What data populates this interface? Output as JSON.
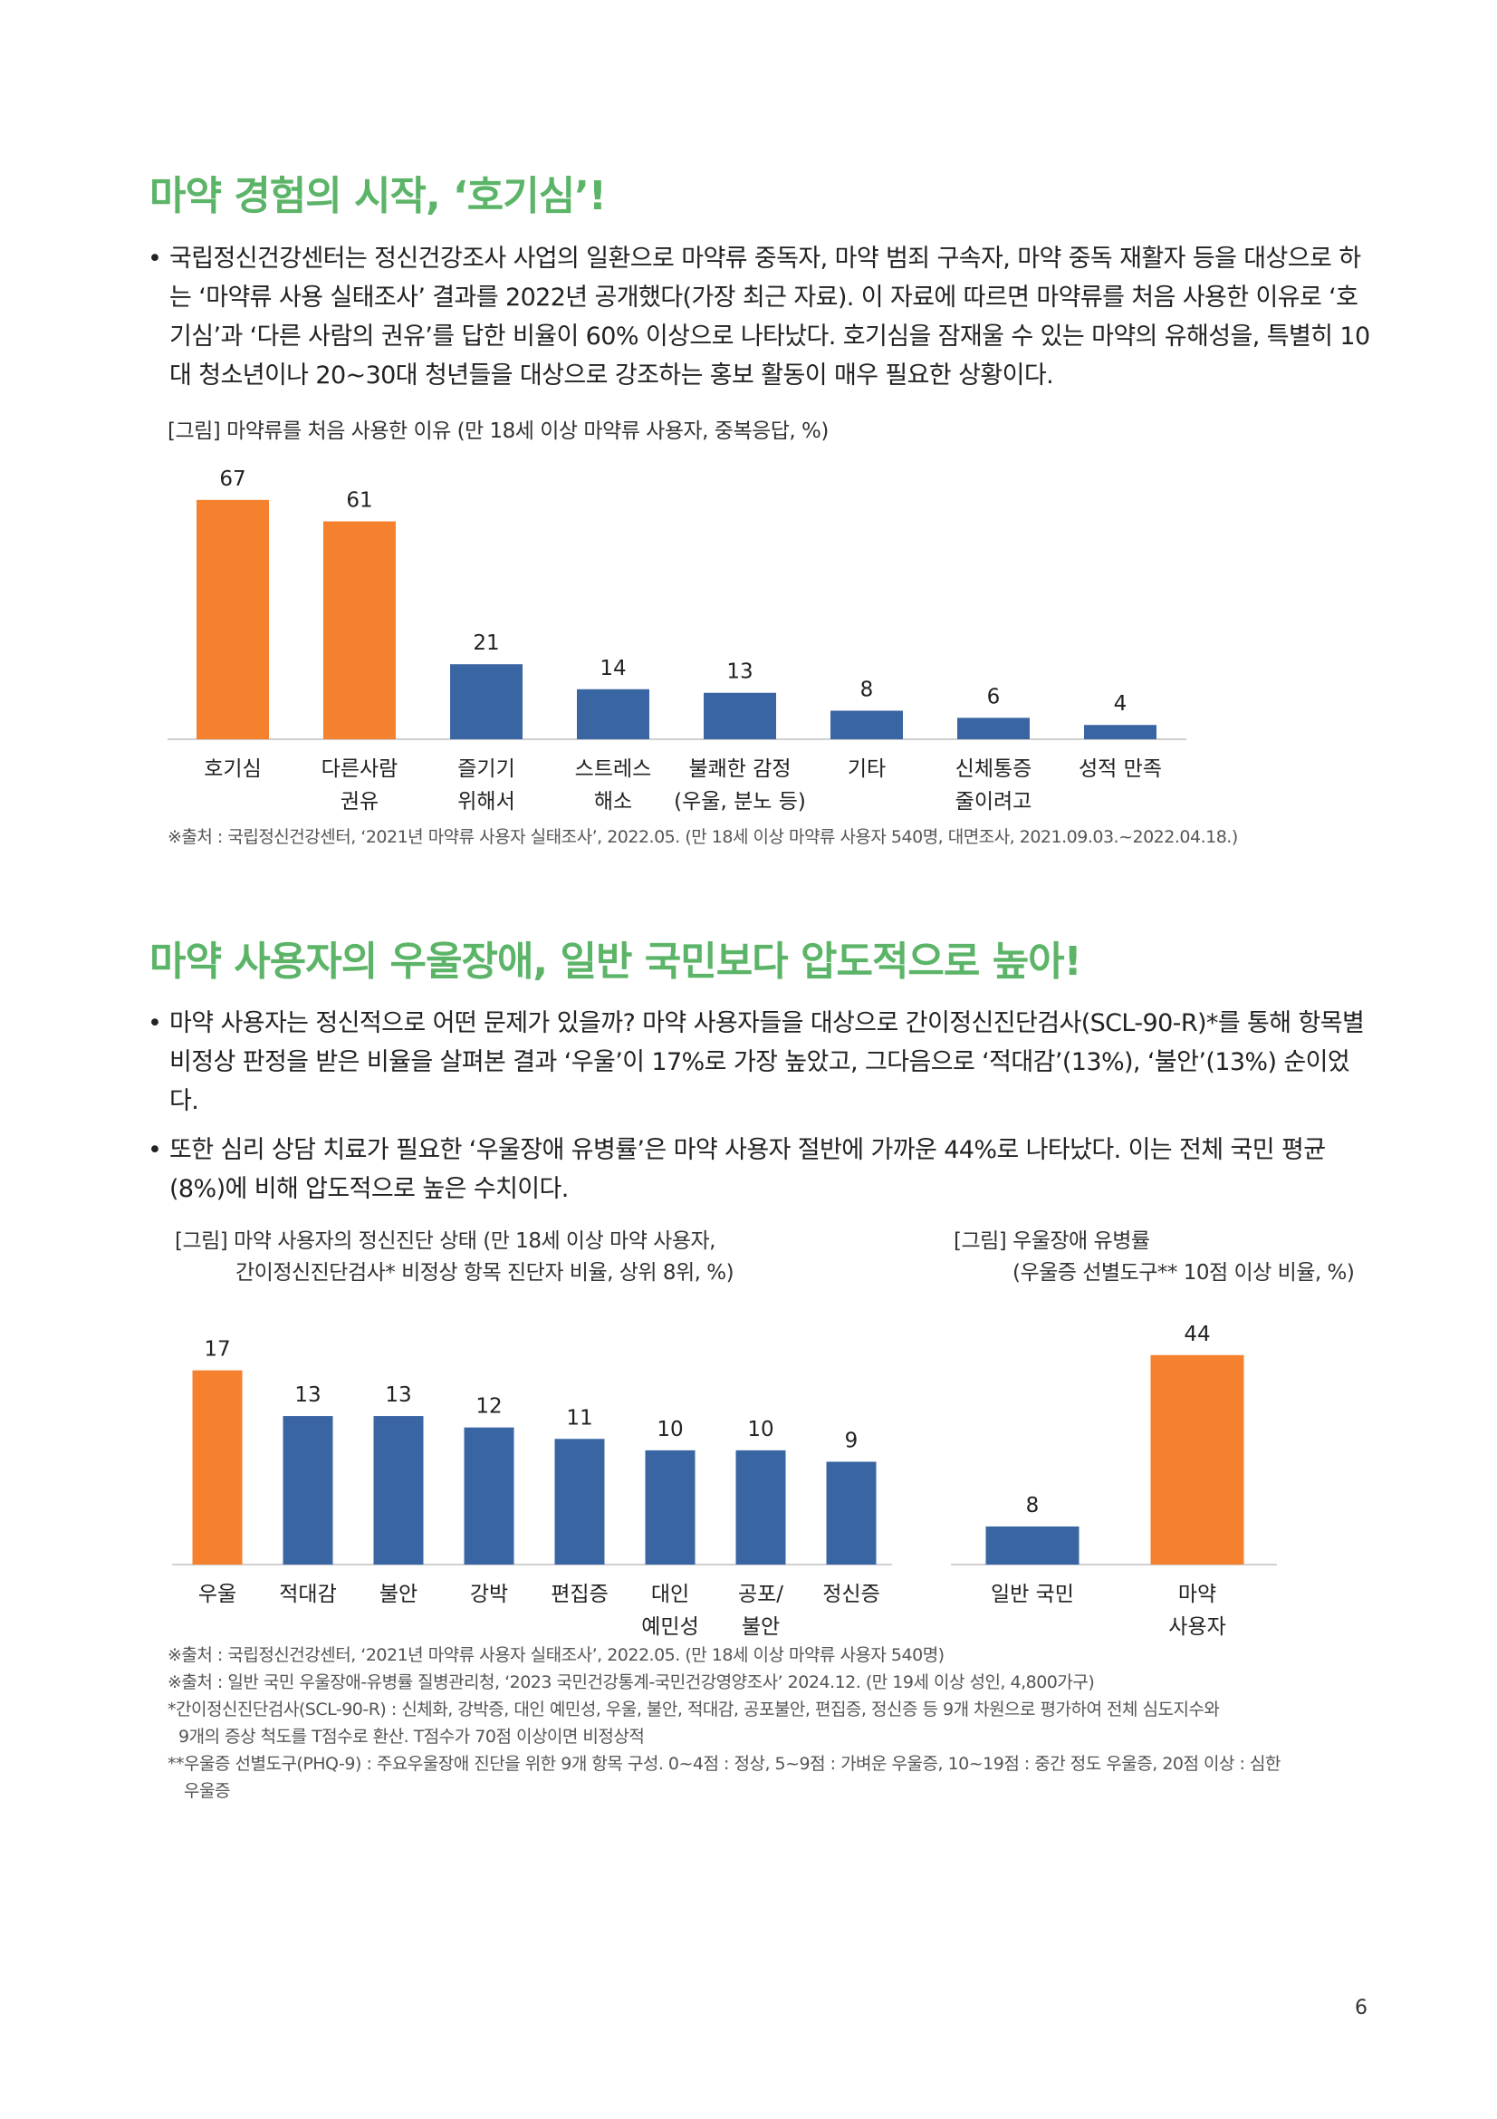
{
  "section1": {
    "title": "마약 경험의 시작, ‘호기심’!",
    "bullet": "국립정신건강센터는 정신건강조사 사업의 일환으로 마약류 중독자, 마약 범죄 구속자, 마약 중독 재활자 등을 대상으로 하는 ‘마약류 사용 실태조사’ 결과를 2022년 공개했다(가장 최근 자료). 이 자료에 따르면 마약류를 처음 사용한 이유로 ‘호기심’과 ‘다른 사람의 권유’를 답한 비율이 60% 이상으로 나타났다. 호기심을 잠재울 수 있는 마약의 유해성을, 특별히 10대 청소년이나 20~30대 청년들을 대상으로 강조하는 홍보 활동이 매우 필요한 상황이다.",
    "figure_caption": "[그림] 마약류를 처음 사용한 이유 (만 18세 이상 마약류 사용자, 중복응답, %)",
    "source": "※출처 : 국립정신건강센터, ‘2021년 마약류 사용자 실태조사’, 2022.05. (만 18세 이상 마약류 사용자 540명, 대면조사, 2021.09.03.~2022.04.18.)"
  },
  "section2": {
    "title": "마약 사용자의 우울장애, 일반 국민보다 압도적으로 높아!",
    "bullet1": "마약 사용자는 정신적으로 어떤 문제가 있을까? 마약 사용자들을 대상으로 간이정신진단검사(SCL-90-R)*를 통해 항목별 비정상 판정을 받은 비율을 살펴본 결과 ‘우울’이 17%로 가장 높았고, 그다음으로 ‘적대감’(13%), ‘불안’(13%) 순이었다.",
    "bullet2": "또한 심리 상담 치료가 필요한 ‘우울장애 유병률’은 마약 사용자 절반에 가까운 44%로 나타났다. 이는 전체 국민 평균(8%)에 비해 압도적으로 높은 수치이다.",
    "figure_caption_left_1": "[그림] 마약 사용자의 정신진단 상태 (만 18세 이상 마약 사용자,",
    "figure_caption_left_2": "간이정신진단검사* 비정상 항목 진단자 비율, 상위 8위, %)",
    "figure_caption_right_1": "[그림] 우울장애 유병률",
    "figure_caption_right_2": "(우울증 선별도구** 10점 이상 비율, %)",
    "notes": [
      "※출처 : 국립정신건강센터, ‘2021년 마약류 사용자 실태조사’, 2022.05. (만 18세 이상 마약류 사용자 540명)",
      "※출처 : 일반 국민 우울장애-유병률 질병관리청, ‘2023 국민건강통계-국민건강영양조사’ 2024.12. (만 19세 이상 성인, 4,800가구)",
      "*간이정신진단검사(SCL-90-R) : 신체화, 강박증, 대인 예민성, 우울, 불안, 적대감, 공포불안, 편집증, 정신증 등 9개 차원으로 평가하여 전체 심도지수와",
      "9개의 증상 척도를 T점수로 환산. T점수가 70점 이상이면 비정상적",
      "**우울증 선별도구(PHQ-9) : 주요우울장애 진단을 위한 9개 항목 구성. 0~4점 : 정상, 5~9점 : 가벼운 우울증, 10~19점 : 중간 정도 우울증, 20점 이상 : 심한",
      "우울증"
    ]
  },
  "page_number": "6",
  "colors": {
    "accent_green": "#5cb468",
    "orange": "#f5812e",
    "blue": "#3a65a3"
  },
  "chart_data": [
    {
      "type": "bar",
      "categories": [
        [
          "호기심"
        ],
        [
          "다른사람",
          "권유"
        ],
        [
          "즐기기",
          "위해서"
        ],
        [
          "스트레스",
          "해소"
        ],
        [
          "불쾌한 감정",
          "(우울, 분노 등)"
        ],
        [
          "기타"
        ],
        [
          "신체통증",
          "줄이려고"
        ],
        [
          "성적 만족"
        ]
      ],
      "values": [
        67,
        61,
        21,
        14,
        13,
        8,
        6,
        4
      ],
      "highlight": [
        true,
        true,
        false,
        false,
        false,
        false,
        false,
        false
      ],
      "ylim": [
        0,
        70
      ]
    },
    {
      "type": "bar",
      "categories": [
        [
          "우울"
        ],
        [
          "적대감"
        ],
        [
          "불안"
        ],
        [
          "강박"
        ],
        [
          "편집증"
        ],
        [
          "대인",
          "예민성"
        ],
        [
          "공포/",
          "불안"
        ],
        [
          "정신증"
        ]
      ],
      "values": [
        17,
        13,
        13,
        12,
        11,
        10,
        10,
        9
      ],
      "highlight": [
        true,
        false,
        false,
        false,
        false,
        false,
        false,
        false
      ],
      "ylim": [
        0,
        18
      ]
    },
    {
      "type": "bar",
      "categories": [
        [
          "일반 국민"
        ],
        [
          "마약",
          "사용자"
        ]
      ],
      "values": [
        8,
        44
      ],
      "highlight": [
        false,
        true
      ],
      "ylim": [
        0,
        47
      ]
    }
  ]
}
